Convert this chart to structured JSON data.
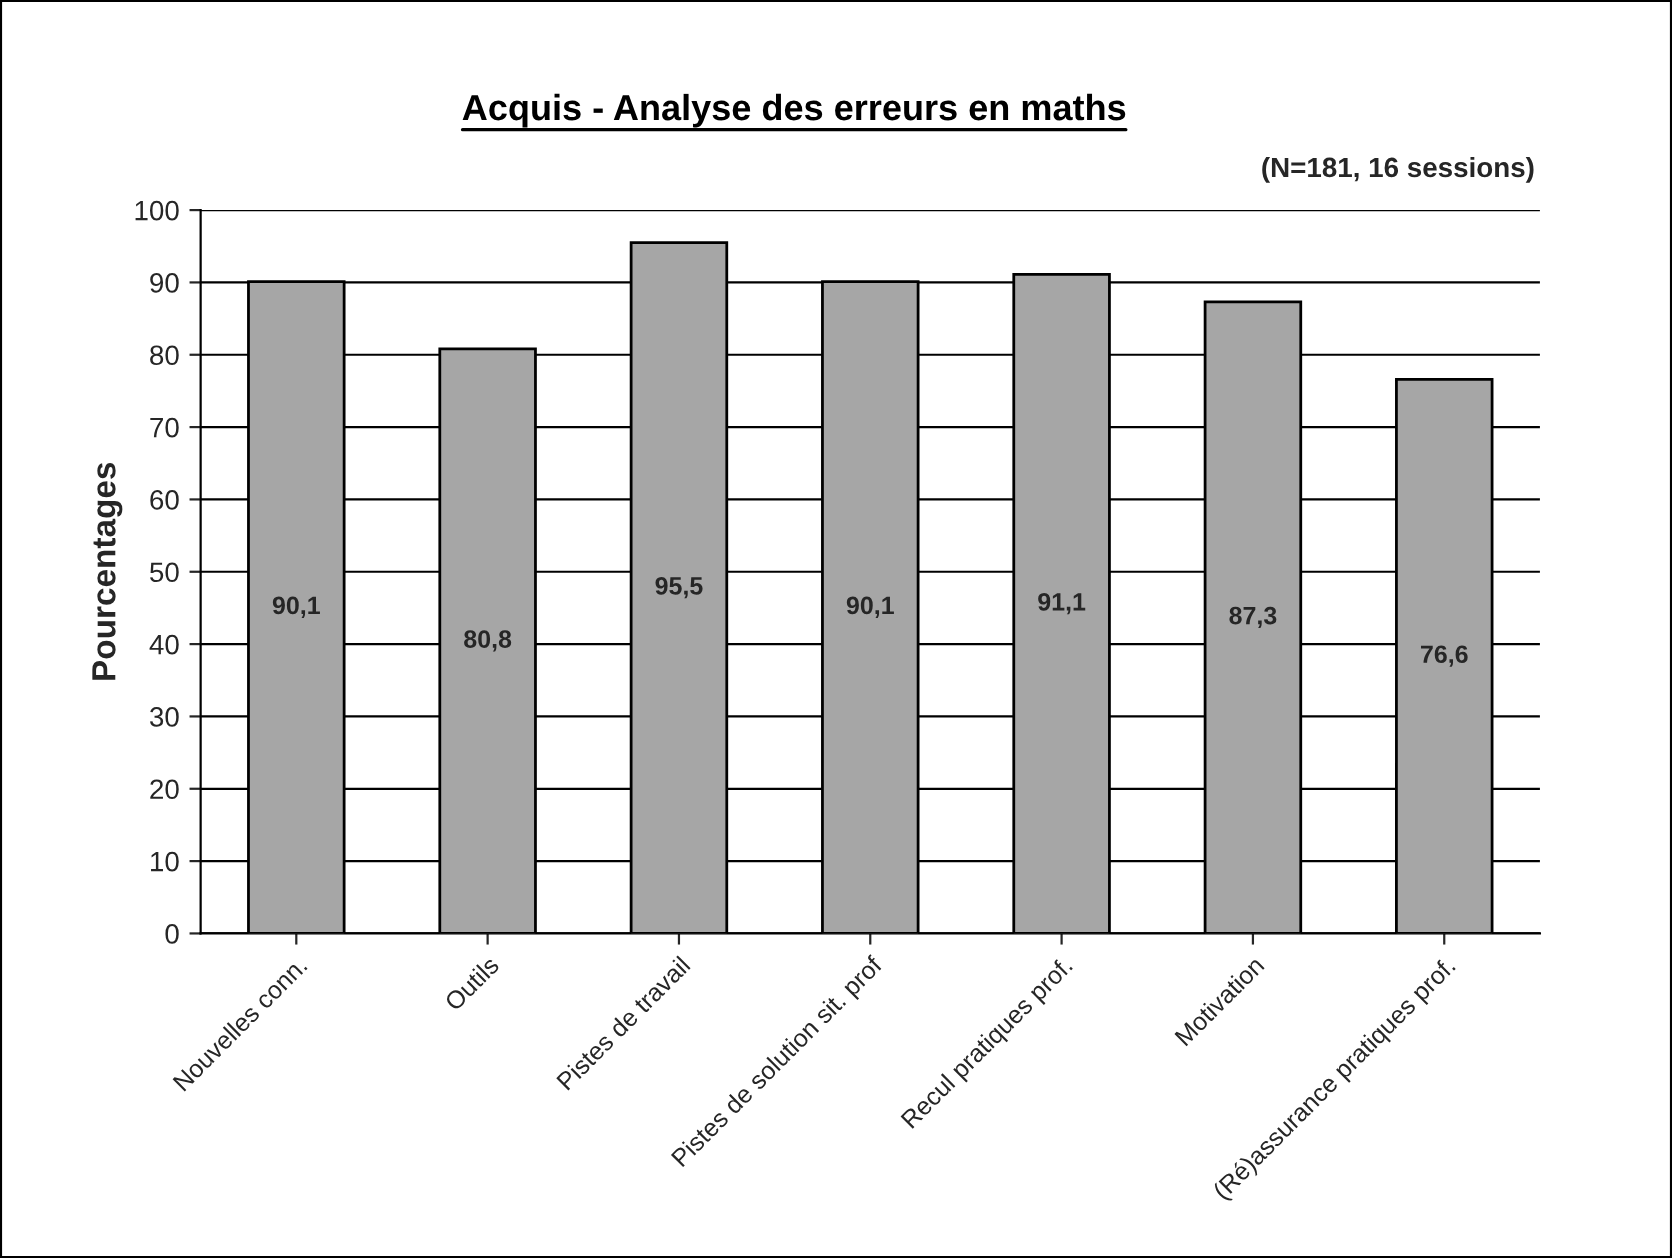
{
  "chart_data": {
    "type": "bar",
    "title": "Acquis - Analyse des erreurs en maths",
    "subtitle": "(N=181, 16 sessions)",
    "ylabel": "Pourcentages",
    "categories": [
      "Nouvelles conn.",
      "Outils",
      "Pistes de travail",
      "Pistes de solution sit. prof",
      "Recul pratiques prof.",
      "Motivation",
      "(Ré)assurance pratiques prof."
    ],
    "values": [
      90.1,
      80.8,
      95.5,
      90.1,
      91.1,
      87.3,
      76.6
    ],
    "color": "#a6a6a6",
    "ylim": [
      0,
      100
    ],
    "yticks": [
      0,
      10,
      20,
      30,
      40,
      50,
      60,
      70,
      80,
      90,
      100
    ],
    "grid": "y",
    "value_labels": [
      "90,1",
      "80,8",
      "95,5",
      "90,1",
      "91,1",
      "87,3",
      "76,6"
    ]
  }
}
